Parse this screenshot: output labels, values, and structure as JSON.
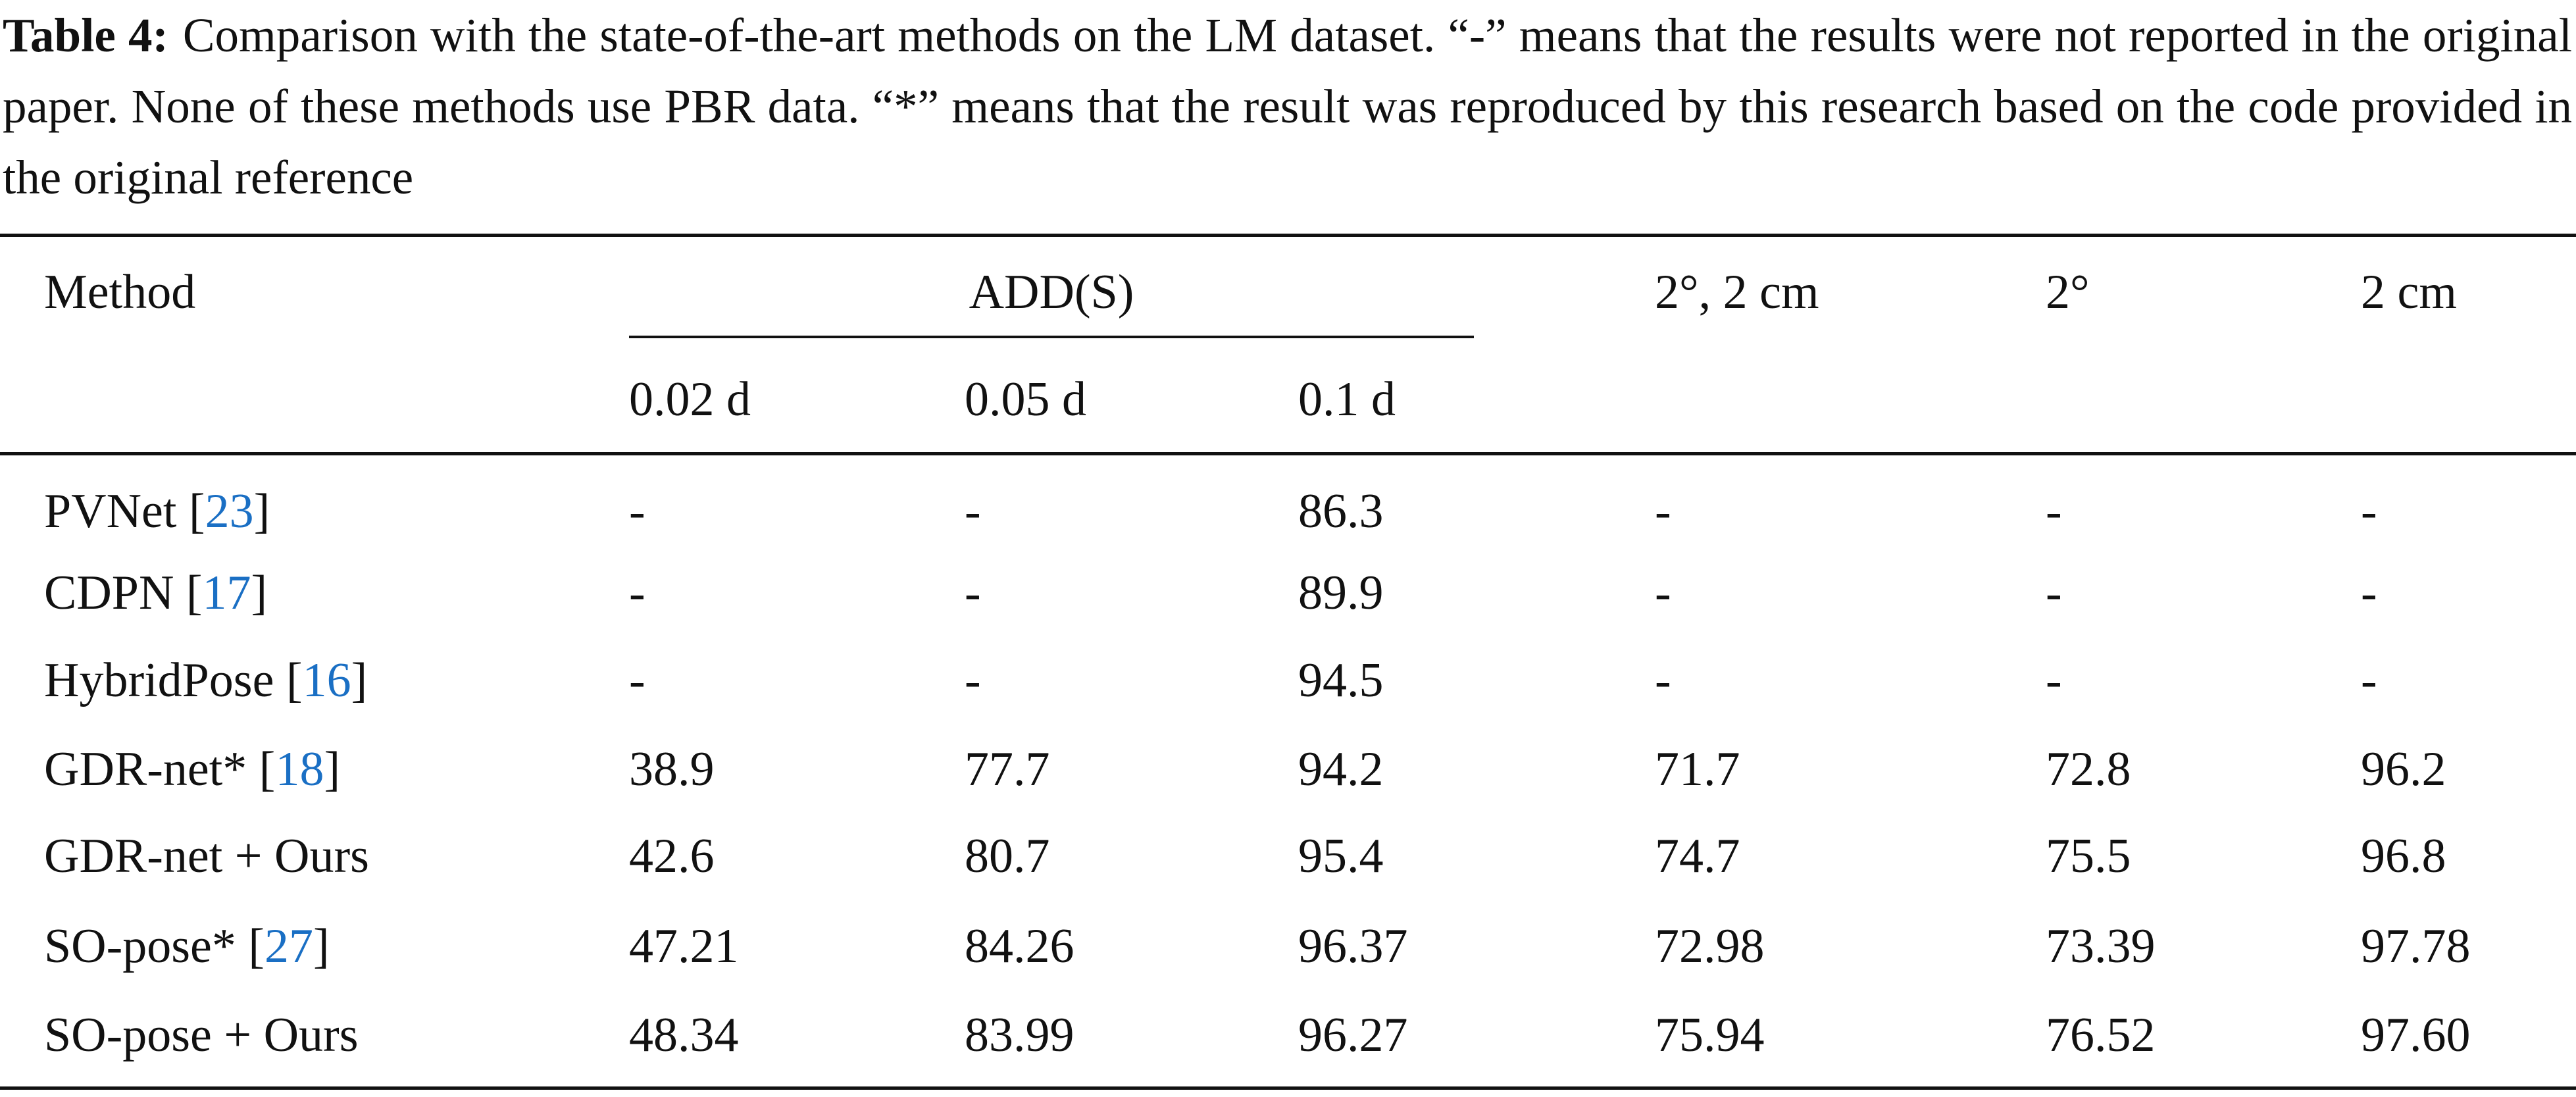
{
  "caption": {
    "label": "Table 4:",
    "text": "Comparison with the state-of-the-art methods on the LM dataset. “-” means that the results were not reported in the original paper. None of these methods use PBR data. “*” means that the result was reproduced by this research based on the code provided in the original reference"
  },
  "table": {
    "header": {
      "method": "Method",
      "group": "ADD(S)",
      "sub": [
        "0.02 d",
        "0.05 d",
        "0.1 d"
      ],
      "other": [
        "2°, 2 cm",
        "2°",
        "2 cm"
      ]
    },
    "rows": [
      {
        "method": [
          "PVNet [",
          "23",
          "]"
        ],
        "cells": [
          "-",
          "-",
          "86.3",
          "-",
          "-",
          "-"
        ]
      },
      {
        "method": [
          "CDPN [",
          "17",
          "]"
        ],
        "cells": [
          "-",
          "-",
          "89.9",
          "-",
          "-",
          "-"
        ]
      },
      {
        "method": [
          "HybridPose [",
          "16",
          "]"
        ],
        "cells": [
          "-",
          "-",
          "94.5",
          "-",
          "-",
          "-"
        ]
      },
      {
        "method": [
          "GDR-net* [",
          "18",
          "]"
        ],
        "cells": [
          "38.9",
          "77.7",
          "94.2",
          "71.7",
          "72.8",
          "96.2"
        ]
      },
      {
        "method": [
          "GDR-net + Ours"
        ],
        "cells": [
          "42.6",
          "80.7",
          "95.4",
          "74.7",
          "75.5",
          "96.8"
        ]
      },
      {
        "method": [
          "SO-pose* [",
          "27",
          "]"
        ],
        "cells": [
          "47.21",
          "84.26",
          "96.37",
          "72.98",
          "73.39",
          "97.78"
        ]
      },
      {
        "method": [
          "SO-pose + Ours"
        ],
        "cells": [
          "48.34",
          "83.99",
          "96.27",
          "75.94",
          "76.52",
          "97.60"
        ]
      }
    ]
  }
}
